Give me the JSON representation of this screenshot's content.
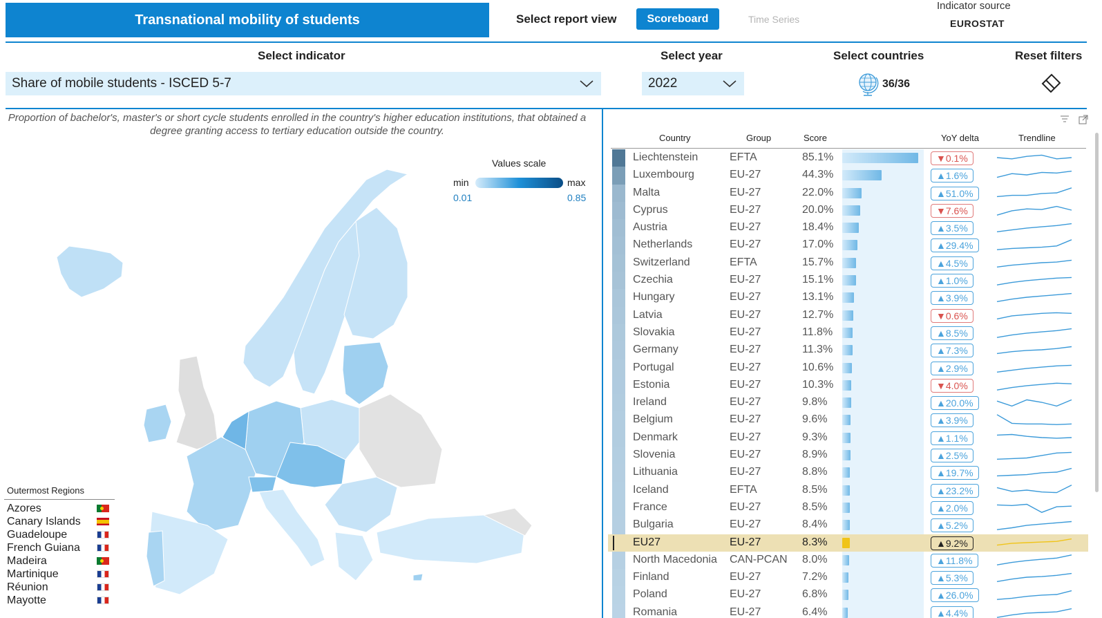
{
  "header": {
    "title": "Transnational mobility of students",
    "report_view_label": "Select report view",
    "views": [
      "Scoreboard",
      "Time Series"
    ],
    "active_view": "Scoreboard",
    "source_label": "Indicator source",
    "source_value": "EUROSTAT"
  },
  "filters": {
    "indicator_label": "Select indicator",
    "indicator_value": "Share of mobile students - ISCED 5-7",
    "year_label": "Select year",
    "year_value": "2022",
    "countries_label": "Select countries",
    "countries_value": "36/36",
    "reset_label": "Reset filters"
  },
  "map_panel": {
    "description": "Proportion of bachelor's, master's or short cycle students enrolled in the country's higher education institutions, that obtained a degree granting access to tertiary education outside the country.",
    "legend": {
      "title": "Values scale",
      "min_label": "min",
      "max_label": "max",
      "min_value": "0.01",
      "max_value": "0.85"
    },
    "outermost": {
      "title": "Outermost Regions",
      "regions": [
        {
          "name": "Azores",
          "flag": "pt"
        },
        {
          "name": "Canary Islands",
          "flag": "es"
        },
        {
          "name": "Guadeloupe",
          "flag": "fr"
        },
        {
          "name": "French Guiana",
          "flag": "fr"
        },
        {
          "name": "Madeira",
          "flag": "pt"
        },
        {
          "name": "Martinique",
          "flag": "fr"
        },
        {
          "name": "Réunion",
          "flag": "fr"
        },
        {
          "name": "Mayotte",
          "flag": "fr"
        }
      ]
    }
  },
  "table": {
    "columns": [
      "Country",
      "Group",
      "Score",
      "YoY delta",
      "Trendline"
    ],
    "highlight_color": "#f0c419",
    "rows": [
      {
        "country": "Liechtenstein",
        "group": "EFTA",
        "score": "85.1%",
        "value": 85.1,
        "delta": "▼0.1%",
        "dir": "down",
        "trend": [
          0.5,
          0.6,
          0.4,
          0.3,
          0.6,
          0.5
        ]
      },
      {
        "country": "Luxembourg",
        "group": "EU-27",
        "score": "44.3%",
        "value": 44.3,
        "delta": "▲1.6%",
        "dir": "up",
        "trend": [
          0.7,
          0.4,
          0.5,
          0.3,
          0.35,
          0.2
        ]
      },
      {
        "country": "Malta",
        "group": "EU-27",
        "score": "22.0%",
        "value": 22.0,
        "delta": "▲51.0%",
        "dir": "up",
        "trend": [
          0.8,
          0.7,
          0.7,
          0.55,
          0.5,
          0.1
        ]
      },
      {
        "country": "Cyprus",
        "group": "EU-27",
        "score": "20.0%",
        "value": 20.0,
        "delta": "▼7.6%",
        "dir": "down",
        "trend": [
          0.9,
          0.55,
          0.4,
          0.45,
          0.2,
          0.5
        ]
      },
      {
        "country": "Austria",
        "group": "EU-27",
        "score": "18.4%",
        "value": 18.4,
        "delta": "▲3.5%",
        "dir": "up",
        "trend": [
          0.85,
          0.7,
          0.55,
          0.45,
          0.35,
          0.2
        ]
      },
      {
        "country": "Netherlands",
        "group": "EU-27",
        "score": "17.0%",
        "value": 17.0,
        "delta": "▲29.4%",
        "dir": "up",
        "trend": [
          0.9,
          0.8,
          0.75,
          0.7,
          0.6,
          0.1
        ]
      },
      {
        "country": "Switzerland",
        "group": "EFTA",
        "score": "15.7%",
        "value": 15.7,
        "delta": "▲4.5%",
        "dir": "up",
        "trend": [
          0.85,
          0.7,
          0.6,
          0.5,
          0.45,
          0.3
        ]
      },
      {
        "country": "Czechia",
        "group": "EU-27",
        "score": "15.1%",
        "value": 15.1,
        "delta": "▲1.0%",
        "dir": "up",
        "trend": [
          0.9,
          0.7,
          0.55,
          0.45,
          0.35,
          0.3
        ]
      },
      {
        "country": "Hungary",
        "group": "EU-27",
        "score": "13.1%",
        "value": 13.1,
        "delta": "▲3.9%",
        "dir": "up",
        "trend": [
          0.85,
          0.65,
          0.5,
          0.4,
          0.3,
          0.2
        ]
      },
      {
        "country": "Latvia",
        "group": "EU-27",
        "score": "12.7%",
        "value": 12.7,
        "delta": "▼0.6%",
        "dir": "down",
        "trend": [
          0.8,
          0.55,
          0.45,
          0.35,
          0.3,
          0.35
        ]
      },
      {
        "country": "Slovakia",
        "group": "EU-27",
        "score": "11.8%",
        "value": 11.8,
        "delta": "▲8.5%",
        "dir": "up",
        "trend": [
          0.9,
          0.7,
          0.55,
          0.45,
          0.35,
          0.2
        ]
      },
      {
        "country": "Germany",
        "group": "EU-27",
        "score": "11.3%",
        "value": 11.3,
        "delta": "▲7.3%",
        "dir": "up",
        "trend": [
          0.8,
          0.65,
          0.55,
          0.5,
          0.4,
          0.25
        ]
      },
      {
        "country": "Portugal",
        "group": "EU-27",
        "score": "10.6%",
        "value": 10.6,
        "delta": "▲2.9%",
        "dir": "up",
        "trend": [
          0.85,
          0.7,
          0.55,
          0.45,
          0.35,
          0.3
        ]
      },
      {
        "country": "Estonia",
        "group": "EU-27",
        "score": "10.3%",
        "value": 10.3,
        "delta": "▼4.0%",
        "dir": "down",
        "trend": [
          0.9,
          0.7,
          0.55,
          0.45,
          0.35,
          0.4
        ]
      },
      {
        "country": "Ireland",
        "group": "EU-27",
        "score": "9.8%",
        "value": 9.8,
        "delta": "▲20.0%",
        "dir": "up",
        "trend": [
          0.4,
          0.8,
          0.3,
          0.5,
          0.8,
          0.3
        ]
      },
      {
        "country": "Belgium",
        "group": "EU-27",
        "score": "9.6%",
        "value": 9.6,
        "delta": "▲3.9%",
        "dir": "up",
        "trend": [
          0.1,
          0.8,
          0.85,
          0.85,
          0.9,
          0.85
        ]
      },
      {
        "country": "Denmark",
        "group": "EU-27",
        "score": "9.3%",
        "value": 9.3,
        "delta": "▲1.1%",
        "dir": "up",
        "trend": [
          0.3,
          0.25,
          0.4,
          0.5,
          0.55,
          0.5
        ]
      },
      {
        "country": "Slovenia",
        "group": "EU-27",
        "score": "8.9%",
        "value": 8.9,
        "delta": "▲2.5%",
        "dir": "up",
        "trend": [
          0.85,
          0.8,
          0.75,
          0.55,
          0.35,
          0.3
        ]
      },
      {
        "country": "Lithuania",
        "group": "EU-27",
        "score": "8.8%",
        "value": 8.8,
        "delta": "▲19.7%",
        "dir": "up",
        "trend": [
          0.8,
          0.75,
          0.7,
          0.55,
          0.5,
          0.2
        ]
      },
      {
        "country": "Iceland",
        "group": "EFTA",
        "score": "8.5%",
        "value": 8.5,
        "delta": "▲23.2%",
        "dir": "up",
        "trend": [
          0.3,
          0.6,
          0.5,
          0.65,
          0.7,
          0.1
        ]
      },
      {
        "country": "France",
        "group": "EU-27",
        "score": "8.5%",
        "value": 8.5,
        "delta": "▲2.0%",
        "dir": "up",
        "trend": [
          0.3,
          0.35,
          0.25,
          0.9,
          0.45,
          0.4
        ]
      },
      {
        "country": "Bulgaria",
        "group": "EU-27",
        "score": "8.4%",
        "value": 8.4,
        "delta": "▲5.2%",
        "dir": "up",
        "trend": [
          0.9,
          0.75,
          0.55,
          0.45,
          0.35,
          0.25
        ]
      },
      {
        "country": "EU27",
        "group": "EU-27",
        "score": "8.3%",
        "value": 8.3,
        "delta": "▲9.2%",
        "dir": "up",
        "highlight": true,
        "trend": [
          0.7,
          0.55,
          0.5,
          0.45,
          0.4,
          0.2
        ]
      },
      {
        "country": "North Macedonia",
        "group": "CAN-PCAN",
        "score": "8.0%",
        "value": 8.0,
        "delta": "▲11.8%",
        "dir": "up",
        "trend": [
          0.9,
          0.7,
          0.55,
          0.45,
          0.35,
          0.1
        ]
      },
      {
        "country": "Finland",
        "group": "EU-27",
        "score": "7.2%",
        "value": 7.2,
        "delta": "▲5.3%",
        "dir": "up",
        "trend": [
          0.85,
          0.65,
          0.5,
          0.45,
          0.35,
          0.2
        ]
      },
      {
        "country": "Poland",
        "group": "EU-27",
        "score": "6.8%",
        "value": 6.8,
        "delta": "▲26.0%",
        "dir": "up",
        "trend": [
          0.9,
          0.8,
          0.65,
          0.55,
          0.5,
          0.2
        ]
      },
      {
        "country": "Romania",
        "group": "EU-27",
        "score": "6.4%",
        "value": 6.4,
        "delta": "▲4.4%",
        "dir": "up",
        "trend": [
          0.9,
          0.7,
          0.55,
          0.5,
          0.45,
          0.2
        ]
      }
    ]
  }
}
